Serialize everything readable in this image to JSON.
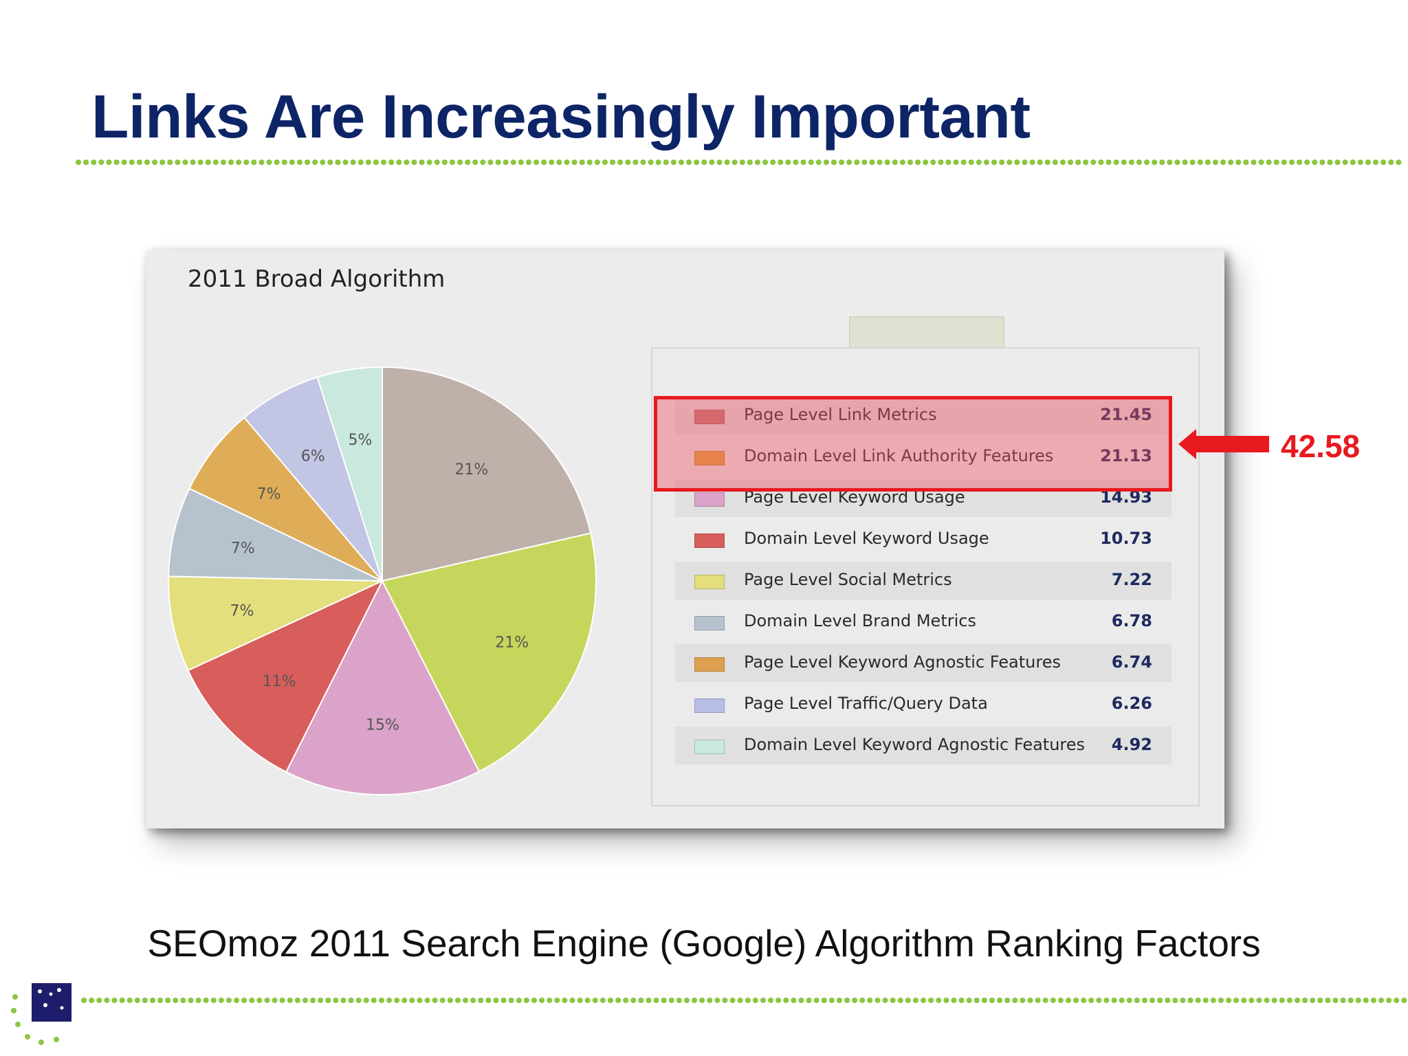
{
  "slide": {
    "title": "Links Are Increasingly Important",
    "caption": "SEOmoz 2011 Search Engine (Google) Algorithm Ranking Factors"
  },
  "callout": {
    "sum_label": "42.58",
    "highlight_color": "#e8191f"
  },
  "chart_data": {
    "type": "pie",
    "title": "2011 Broad Algorithm",
    "series": [
      {
        "name": "Page Level Link Metrics",
        "value": 21.45,
        "pct_label": "21%",
        "color": "#bfb1aa"
      },
      {
        "name": "Domain Level Link Authority Features",
        "value": 21.13,
        "pct_label": "21%",
        "color": "#c6d65c"
      },
      {
        "name": "Page Level Keyword Usage",
        "value": 14.93,
        "pct_label": "15%",
        "color": "#dba3c9"
      },
      {
        "name": "Domain Level Keyword Usage",
        "value": 10.73,
        "pct_label": "11%",
        "color": "#d85e5b"
      },
      {
        "name": "Page Level Social Metrics",
        "value": 7.22,
        "pct_label": "7%",
        "color": "#e2df7c"
      },
      {
        "name": "Domain Level Brand Metrics",
        "value": 6.78,
        "pct_label": "7%",
        "color": "#b6c3cf"
      },
      {
        "name": "Page Level Keyword Agnostic Features",
        "value": 6.74,
        "pct_label": "7%",
        "color": "#dfad57"
      },
      {
        "name": "Page Level Traffic/Query Data",
        "value": 6.26,
        "pct_label": "6%",
        "color": "#c2c5e3"
      },
      {
        "name": "Domain Level Keyword Agnostic Features",
        "value": 4.92,
        "pct_label": "5%",
        "color": "#c9e8de"
      }
    ],
    "legend": {
      "placement": "right",
      "rows": [
        {
          "label": "Page Level Link Metrics",
          "value": "21.45",
          "color": "#c27a78"
        },
        {
          "label": "Domain Level Link Authority Features",
          "value": "21.13",
          "color": "#dea53c"
        },
        {
          "label": "Page Level Keyword Usage",
          "value": "14.93",
          "color": "#dba3c9"
        },
        {
          "label": "Domain Level Keyword Usage",
          "value": "10.73",
          "color": "#d85e5b"
        },
        {
          "label": "Page Level Social Metrics",
          "value": "7.22",
          "color": "#e2df7c"
        },
        {
          "label": "Domain Level Brand Metrics",
          "value": "6.78",
          "color": "#b6c3cf"
        },
        {
          "label": "Page Level Keyword Agnostic Features",
          "value": "6.74",
          "color": "#dea050"
        },
        {
          "label": "Page Level Traffic/Query Data",
          "value": "6.26",
          "color": "#b8bde6"
        },
        {
          "label": "Domain Level Keyword Agnostic Features",
          "value": "4.92",
          "color": "#c9e8de"
        }
      ]
    }
  },
  "colors": {
    "title": "#0d2466",
    "dotline": "#8cc63f",
    "logo_square": "#1d1d6b"
  }
}
